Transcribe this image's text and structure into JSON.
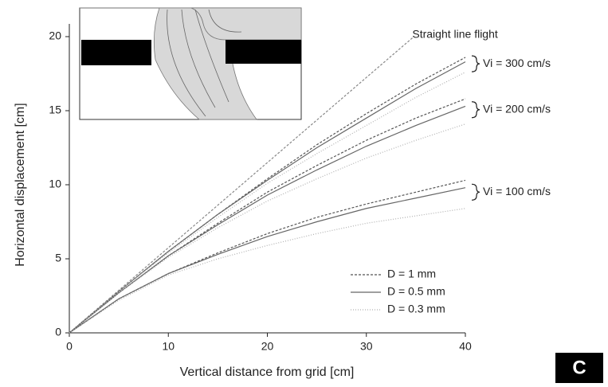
{
  "chart_data": {
    "type": "line",
    "x_label": "Vertical distance from grid [cm]",
    "y_label": "Horizontal displacement [cm]",
    "xlim": [
      0,
      40
    ],
    "ylim": [
      0,
      20
    ],
    "xticks": [
      0,
      10,
      20,
      30,
      40
    ],
    "yticks": [
      0,
      5,
      10,
      15,
      20
    ],
    "legend_position": "lower right",
    "legend": [
      {
        "name": "D = 1 mm",
        "color": "#555555",
        "dash": "3,2"
      },
      {
        "name": "D = 0.5 mm",
        "color": "#666666",
        "dash": "none"
      },
      {
        "name": "D = 0.3 mm",
        "color": "#b0b0b0",
        "dash": "1,2"
      }
    ],
    "straight_line": {
      "name": "Straight line flight",
      "color": "#888888",
      "dash": "3,2",
      "x": [
        0,
        34.8
      ],
      "values": [
        0,
        20
      ]
    },
    "x": [
      0,
      5,
      10,
      15,
      20,
      25,
      30,
      35,
      40
    ],
    "groups": [
      {
        "label": "Vi = 300 cm/s",
        "series": [
          {
            "style": 0,
            "values": [
              0,
              2.8,
              5.5,
              8.0,
              10.4,
              12.7,
              14.8,
              16.8,
              18.6
            ]
          },
          {
            "style": 1,
            "values": [
              0,
              2.8,
              5.5,
              8.0,
              10.3,
              12.5,
              14.5,
              16.5,
              18.3
            ]
          },
          {
            "style": 2,
            "values": [
              0,
              2.8,
              5.4,
              7.8,
              10.1,
              12.1,
              14.0,
              15.9,
              17.6
            ]
          }
        ]
      },
      {
        "label": "Vi = 200 cm/s",
        "series": [
          {
            "style": 0,
            "values": [
              0,
              2.7,
              5.2,
              7.4,
              9.5,
              11.3,
              13.0,
              14.5,
              15.8
            ]
          },
          {
            "style": 1,
            "values": [
              0,
              2.7,
              5.2,
              7.3,
              9.3,
              11.0,
              12.6,
              14.0,
              15.3
            ]
          },
          {
            "style": 2,
            "values": [
              0,
              2.7,
              5.1,
              7.1,
              8.9,
              10.4,
              11.8,
              13.0,
              14.1
            ]
          }
        ]
      },
      {
        "label": "Vi = 100 cm/s",
        "series": [
          {
            "style": 0,
            "values": [
              0,
              2.3,
              4.0,
              5.4,
              6.7,
              7.8,
              8.7,
              9.5,
              10.3
            ]
          },
          {
            "style": 1,
            "values": [
              0,
              2.3,
              4.0,
              5.3,
              6.5,
              7.5,
              8.4,
              9.1,
              9.8
            ]
          },
          {
            "style": 2,
            "values": [
              0,
              2.2,
              3.9,
              5.0,
              5.9,
              6.7,
              7.4,
              7.9,
              8.4
            ]
          }
        ]
      }
    ],
    "panel_label": "C"
  }
}
